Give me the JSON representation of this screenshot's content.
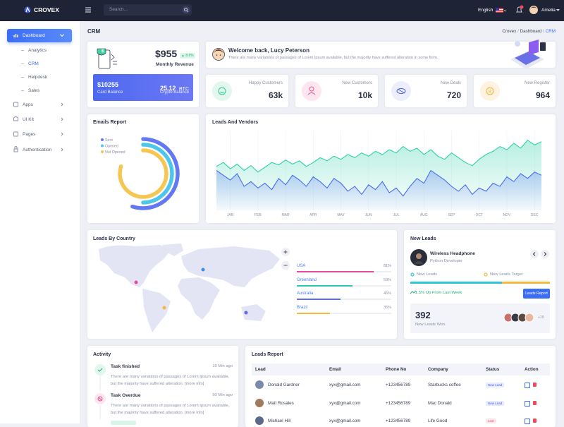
{
  "topbar": {
    "brand": "CROVEX",
    "search_placeholder": "Search...",
    "language": "English",
    "user": "Amelia"
  },
  "sidebar": {
    "dashboard": "Dashboard",
    "submenu": [
      "Analytics",
      "CRM",
      "Helpdesk",
      "Sales"
    ],
    "menu": [
      "Apps",
      "UI Kit",
      "Pages",
      "Authentication"
    ]
  },
  "page": {
    "title": "CRM",
    "breadcrumb": [
      "Crovex",
      "Dashboard",
      "CRM"
    ]
  },
  "revenue": {
    "amount": "$955",
    "change": "8.6%",
    "label": "Monthly Revenue",
    "card_balance": "$10255",
    "card_balance_label": "Card Balance",
    "crypto_value": "25.12",
    "crypto_unit": "BTC",
    "crypto_label": "Crypto Balance"
  },
  "welcome": {
    "title": "Welcome back, Lucy Peterson",
    "text": "There are many variations of passages of Lorem Ipsum available, but the majority have suffered alteration in some form."
  },
  "stats": [
    {
      "label": "Happy Customers",
      "value": "63k"
    },
    {
      "label": "New Customers",
      "value": "10k"
    },
    {
      "label": "New Deals",
      "value": "720"
    },
    {
      "label": "New Register",
      "value": "964"
    }
  ],
  "chart_data": [
    {
      "type": "radialbar",
      "title": "Emails Report",
      "series": [
        {
          "name": "Sent",
          "color": "#6379f2",
          "value": 55
        },
        {
          "name": "Opened",
          "color": "#4cc7eb",
          "value": 50
        },
        {
          "name": "Not Opened",
          "color": "#f6c653",
          "value": 80
        }
      ]
    },
    {
      "type": "area",
      "title": "Leads And Vendors",
      "categories": [
        null,
        null,
        "JAN",
        null,
        null,
        null,
        "FEB",
        null,
        null,
        null,
        "MAR",
        null,
        null,
        null,
        "APR",
        null,
        null,
        null,
        "MAY",
        null,
        null,
        null,
        "JUN",
        null,
        null,
        null,
        "JUL",
        null,
        null,
        null,
        "AUG",
        null,
        null,
        null,
        "SEP",
        null,
        null,
        null,
        "OCT",
        null,
        null,
        null,
        "NOV",
        null,
        null,
        null,
        "DEC",
        null
      ],
      "ylim": [
        0,
        100
      ],
      "series": [
        {
          "color": "#2fd0a8",
          "values": [
            55,
            60,
            52,
            58,
            50,
            56,
            48,
            54,
            60,
            57,
            63,
            58,
            62,
            55,
            60,
            66,
            62,
            68,
            64,
            70,
            66,
            72,
            68,
            74,
            70,
            76,
            72,
            80,
            74,
            78,
            70,
            76,
            68,
            64,
            72,
            66,
            60,
            56,
            64,
            70,
            74,
            80,
            76,
            84,
            78,
            88,
            82,
            86
          ]
        },
        {
          "color": "#4a6cf0",
          "values": [
            50,
            44,
            38,
            46,
            30,
            36,
            28,
            34,
            26,
            40,
            32,
            44,
            38,
            30,
            42,
            36,
            28,
            40,
            34,
            24,
            30,
            20,
            32,
            26,
            36,
            22,
            28,
            18,
            30,
            40,
            34,
            50,
            44,
            38,
            30,
            24,
            32,
            20,
            28,
            24,
            34,
            30,
            42,
            36,
            46,
            40,
            48,
            44
          ]
        }
      ]
    }
  ],
  "countries": {
    "title": "Leads By Country",
    "names": [
      "USA",
      "Greenland",
      "Australia",
      "Brazil"
    ],
    "values": [
      81,
      59,
      46,
      35
    ],
    "value_labels": [
      "81%",
      "59%",
      "46%",
      "35%"
    ],
    "colors": [
      "#e84a9b",
      "#2fc6b4",
      "#5b6cf0",
      "#f5b942"
    ]
  },
  "new_leads": {
    "title": "New Leads",
    "product": "Wireless Headphone",
    "role": "Python Developer",
    "legend": [
      "New Leads",
      "New Leads Target"
    ],
    "trend": "1.5% Up From Last Week",
    "button": "Leads Report",
    "won": "392",
    "won_label": "New Leads Won",
    "more": "+15"
  },
  "activity": {
    "title": "Activity",
    "items": [
      {
        "title": "Task finished",
        "time": "10 Min ago",
        "text": "There are many variations of passages of Lorem Ipsum available, but the majority have suffered alteration.",
        "link": "[more info]"
      },
      {
        "title": "Task Overdue",
        "time": "50 Min ago",
        "text": "There are many variations of passages of Lorem Ipsum available, but the majority have suffered alteration.",
        "link": "[more info]"
      }
    ]
  },
  "leads_report": {
    "title": "Leads Report",
    "columns": [
      "Lead",
      "Email",
      "Phone No",
      "Company",
      "Status",
      "Action"
    ],
    "rows": [
      [
        "Donald Gardner",
        "xyx@gmail.com",
        "+123456789",
        "Starbucks coffee",
        "New Lead"
      ],
      [
        "Matt Rosales",
        "xyx@gmail.com",
        "+123456789",
        "Mac Donald",
        "New Lead"
      ],
      [
        "Michael Hill",
        "xyx@gmail.com",
        "+123456789",
        "Life Good",
        "Lost"
      ]
    ]
  }
}
